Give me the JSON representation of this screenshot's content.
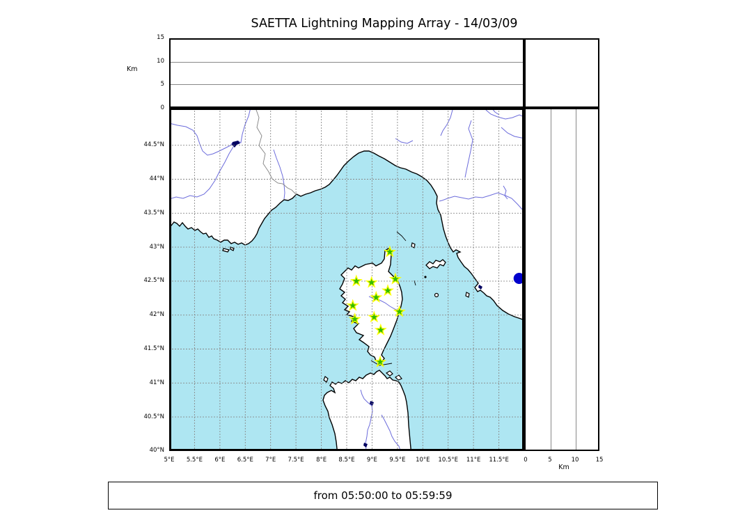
{
  "title": "SAETTA Lightning Mapping Array - 14/03/09",
  "footer": {
    "text": "from 05:50:00 to 05:59:59"
  },
  "colors": {
    "sea": "#aee6f2",
    "land": "#ffffff",
    "coastline": "#000000",
    "river": "#6b6bdb",
    "country_border": "#808080",
    "grid": "#888888",
    "lake": "#000060",
    "station_fill": "#33bb00",
    "station_edge": "#ffff00",
    "source_dot": "#0000cc"
  },
  "panels": {
    "alt_lon": {
      "ylabel": "Km",
      "yticks": [
        "0",
        "5",
        "10",
        "15"
      ]
    },
    "map": {
      "lon_ticks": [
        "5°E",
        "5.5°E",
        "6°E",
        "6.5°E",
        "7°E",
        "7.5°E",
        "8°E",
        "8.5°E",
        "9°E",
        "9.5°E",
        "10°E",
        "10.5°E",
        "11°E",
        "11.5°E"
      ],
      "lat_ticks": [
        "44.5°N",
        "44°N",
        "43.5°N",
        "43°N",
        "42.5°N",
        "42°N",
        "41.5°N",
        "41°N",
        "40.5°N",
        "40°N"
      ]
    },
    "alt_lat": {
      "xlabel": "Km",
      "xticks": [
        "0",
        "5",
        "10",
        "15"
      ]
    }
  },
  "chart_data": {
    "type": "scatter",
    "title": "SAETTA Lightning Mapping Array - 14/03/09",
    "time_window": "from 05:50:00 to 05:59:59",
    "map_panel": {
      "lon_range": [
        5,
        12
      ],
      "lat_range": [
        40,
        45.05
      ],
      "lon_tick_step_deg": 0.5,
      "lat_tick_step_deg": 0.5,
      "grid": true
    },
    "altitude_panels": {
      "unit": "Km",
      "range": [
        0,
        15
      ],
      "tick_values": [
        0,
        5,
        10,
        15
      ],
      "gridlines_km": [
        5,
        10
      ]
    },
    "stations": {
      "name": "LMA station",
      "marker": "star",
      "lonlat": [
        [
          9.35,
          42.93
        ],
        [
          8.69,
          42.5
        ],
        [
          8.99,
          42.48
        ],
        [
          9.46,
          42.53
        ],
        [
          9.31,
          42.36
        ],
        [
          9.08,
          42.26
        ],
        [
          8.62,
          42.14
        ],
        [
          9.54,
          42.05
        ],
        [
          9.04,
          41.97
        ],
        [
          8.66,
          41.94
        ],
        [
          9.17,
          41.78
        ],
        [
          9.16,
          41.31
        ]
      ]
    },
    "sources": {
      "name": "lightning source",
      "marker": "circle",
      "lonlat": [
        [
          11.9,
          42.54
        ]
      ]
    }
  }
}
